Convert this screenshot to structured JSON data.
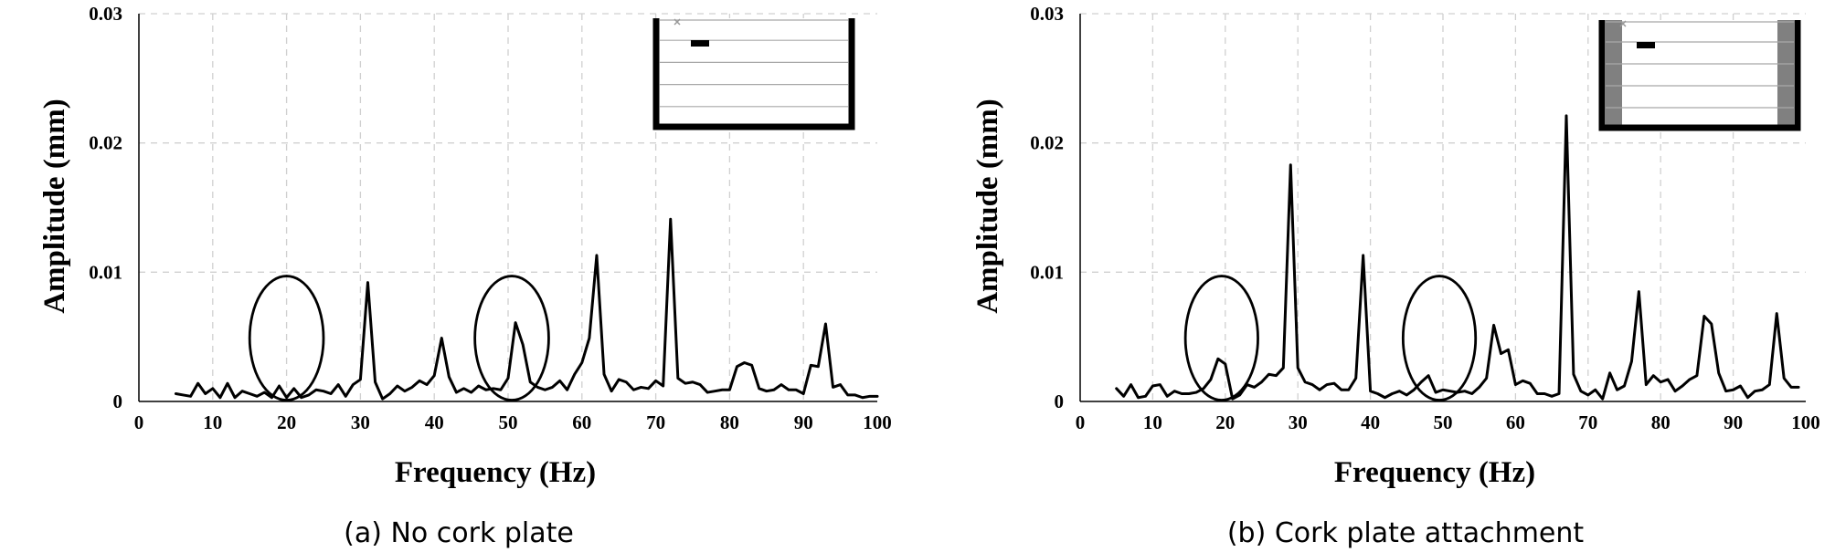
{
  "figure": {
    "panels": [
      {
        "caption": "(a) No cork plate",
        "xlabel": "Frequency (Hz)",
        "ylabel": "Amplitude (mm)",
        "inset": "tank-diagram-no-cork"
      },
      {
        "caption": "(b) Cork plate attachment",
        "xlabel": "Frequency (Hz)",
        "ylabel": "Amplitude (mm)",
        "inset": "tank-diagram-with-cork"
      }
    ],
    "colors": {
      "line": "#000000",
      "grid": "#d0d0d0",
      "cork": "#808080"
    }
  },
  "chart_data": [
    {
      "type": "line",
      "title": "",
      "xlabel": "Frequency (Hz)",
      "ylabel": "Amplitude (mm)",
      "xlim": [
        0,
        100
      ],
      "ylim": [
        0,
        0.03
      ],
      "x_ticks": [
        "0",
        "10",
        "20",
        "30",
        "40",
        "50",
        "60",
        "70",
        "80",
        "90",
        "100"
      ],
      "y_ticks": [
        "0",
        "0.01",
        "0.02",
        "0.03"
      ],
      "grid": "dashed",
      "legend": "none",
      "annotations": [
        {
          "type": "ellipse",
          "center_x": 20,
          "center_y": 0.0049,
          "rx": 5,
          "ry": 0.0048
        },
        {
          "type": "ellipse",
          "center_x": 50.5,
          "center_y": 0.0049,
          "rx": 5,
          "ry": 0.0048
        }
      ],
      "series": [
        {
          "x": [
            5,
            6,
            7,
            8,
            9,
            10,
            11,
            12,
            13,
            14,
            15,
            16,
            17,
            18,
            19,
            20,
            21,
            22,
            23,
            24,
            25,
            26,
            27,
            28,
            29,
            30,
            31,
            32,
            33,
            34,
            35,
            36,
            37,
            38,
            39,
            40,
            41,
            42,
            43,
            44,
            45,
            46,
            47,
            48,
            49,
            50,
            51,
            52,
            53,
            54,
            55,
            56,
            57,
            58,
            59,
            60,
            61,
            62,
            63,
            64,
            65,
            66,
            67,
            68,
            69,
            70,
            71,
            72,
            73,
            74,
            75,
            76,
            77,
            78,
            79,
            80,
            81,
            82,
            83,
            84,
            85,
            86,
            87,
            88,
            89,
            90,
            91,
            92,
            93,
            94,
            95,
            96,
            97,
            98,
            99,
            100
          ],
          "y": [
            0.0006,
            0.0005,
            0.0004,
            0.0014,
            0.0006,
            0.001,
            0.0003,
            0.0014,
            0.0003,
            0.0008,
            0.0006,
            0.0004,
            0.0007,
            0.0003,
            0.0012,
            0.0003,
            0.001,
            0.0003,
            0.0005,
            0.0009,
            0.0008,
            0.0006,
            0.0013,
            0.0004,
            0.0013,
            0.0017,
            0.0092,
            0.0015,
            0.0002,
            0.0006,
            0.0012,
            0.0008,
            0.0011,
            0.0016,
            0.0013,
            0.002,
            0.0049,
            0.0019,
            0.0007,
            0.001,
            0.0007,
            0.0012,
            0.0009,
            0.001,
            0.0009,
            0.0018,
            0.0061,
            0.0044,
            0.0015,
            0.0011,
            0.0009,
            0.0011,
            0.0016,
            0.0009,
            0.0021,
            0.003,
            0.0049,
            0.0113,
            0.0021,
            0.0008,
            0.0017,
            0.0015,
            0.0009,
            0.0011,
            0.001,
            0.0016,
            0.0012,
            0.0141,
            0.0018,
            0.0014,
            0.0015,
            0.0013,
            0.0007,
            0.0008,
            0.0009,
            0.0009,
            0.0027,
            0.003,
            0.0028,
            0.001,
            0.0008,
            0.0009,
            0.0013,
            0.0009,
            0.0009,
            0.0006,
            0.0028,
            0.0027,
            0.006,
            0.0011,
            0.0013,
            0.0005,
            0.0005,
            0.0003,
            0.0004,
            0.0004
          ]
        }
      ]
    },
    {
      "type": "line",
      "title": "",
      "xlabel": "Frequency (Hz)",
      "ylabel": "Amplitude (mm)",
      "xlim": [
        0,
        100
      ],
      "ylim": [
        0,
        0.03
      ],
      "x_ticks": [
        "0",
        "10",
        "20",
        "30",
        "40",
        "50",
        "60",
        "70",
        "80",
        "90",
        "100"
      ],
      "y_ticks": [
        "0",
        "0.01",
        "0.02",
        "0.03"
      ],
      "grid": "dashed",
      "legend": "none",
      "annotations": [
        {
          "type": "ellipse",
          "center_x": 19.5,
          "center_y": 0.0049,
          "rx": 5,
          "ry": 0.0048
        },
        {
          "type": "ellipse",
          "center_x": 49.5,
          "center_y": 0.0049,
          "rx": 5,
          "ry": 0.0048
        }
      ],
      "series": [
        {
          "x": [
            5,
            6,
            7,
            8,
            9,
            10,
            11,
            12,
            13,
            14,
            15,
            16,
            17,
            18,
            19,
            20,
            21,
            22,
            23,
            24,
            25,
            26,
            27,
            28,
            29,
            30,
            31,
            32,
            33,
            34,
            35,
            36,
            37,
            38,
            39,
            40,
            41,
            42,
            43,
            44,
            45,
            46,
            47,
            48,
            49,
            50,
            51,
            52,
            53,
            54,
            55,
            56,
            57,
            58,
            59,
            60,
            61,
            62,
            63,
            64,
            65,
            66,
            67,
            68,
            69,
            70,
            71,
            72,
            73,
            74,
            75,
            76,
            77,
            78,
            79,
            80,
            81,
            82,
            83,
            84,
            85,
            86,
            87,
            88,
            89,
            90,
            91,
            92,
            93,
            94,
            95,
            96,
            97,
            98,
            99
          ],
          "y": [
            0.001,
            0.0004,
            0.0013,
            0.0003,
            0.0004,
            0.0012,
            0.0013,
            0.0004,
            0.0008,
            0.0006,
            0.0006,
            0.0007,
            0.001,
            0.0017,
            0.0033,
            0.0029,
            0.0002,
            0.0005,
            0.0013,
            0.0011,
            0.0015,
            0.0021,
            0.002,
            0.0026,
            0.0183,
            0.0026,
            0.0015,
            0.0013,
            0.0009,
            0.0013,
            0.0014,
            0.0009,
            0.0009,
            0.0018,
            0.0113,
            0.0008,
            0.0006,
            0.0003,
            0.0006,
            0.0008,
            0.0005,
            0.0009,
            0.0015,
            0.002,
            0.0007,
            0.0009,
            0.0008,
            0.0007,
            0.0008,
            0.0006,
            0.0011,
            0.0018,
            0.0059,
            0.0037,
            0.004,
            0.0013,
            0.0016,
            0.0014,
            0.0006,
            0.0006,
            0.0004,
            0.0006,
            0.0221,
            0.0021,
            0.0008,
            0.0005,
            0.0009,
            0.0002,
            0.0022,
            0.0009,
            0.0012,
            0.0031,
            0.0085,
            0.0013,
            0.002,
            0.0015,
            0.0017,
            0.0008,
            0.0012,
            0.0017,
            0.002,
            0.0066,
            0.006,
            0.0022,
            0.0008,
            0.0009,
            0.0012,
            0.0003,
            0.0008,
            0.0009,
            0.0013,
            0.0068,
            0.0018,
            0.0011,
            0.0011
          ]
        }
      ]
    }
  ]
}
